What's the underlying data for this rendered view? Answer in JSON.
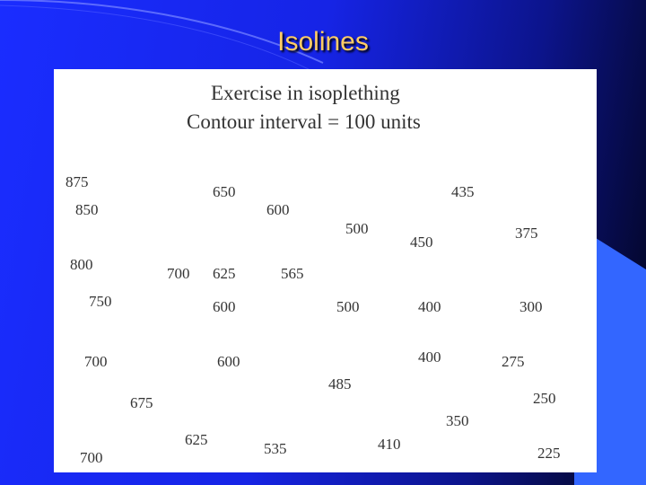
{
  "slide": {
    "title": "Isolines"
  },
  "figure": {
    "heading_line1": "Exercise in isoplething",
    "heading_line2": "Contour interval = 100 units",
    "values": [
      "875",
      "650",
      "435",
      "850",
      "600",
      "500",
      "450",
      "375",
      "800",
      "700",
      "625",
      "565",
      "750",
      "600",
      "500",
      "400",
      "300",
      "700",
      "600",
      "400",
      "275",
      "485",
      "250",
      "675",
      "350",
      "625",
      "410",
      "535",
      "225",
      "700"
    ]
  },
  "colors": {
    "background_blue": "#1a2dff",
    "title_color": "#ffcc66",
    "accent_panel": "#3366ff"
  }
}
